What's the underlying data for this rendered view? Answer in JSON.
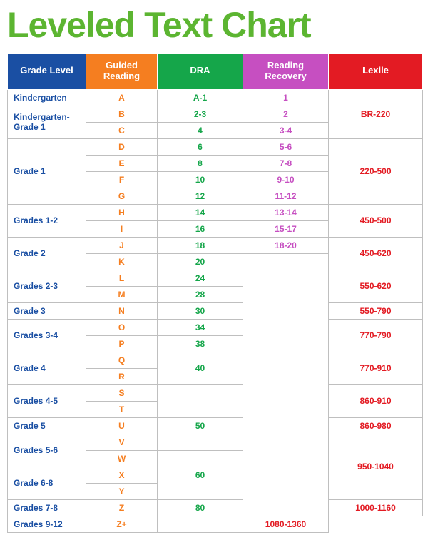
{
  "title": "Leveled Text Chart",
  "title_color": "#5cb531",
  "columns": [
    {
      "key": "grade",
      "label": "Grade Level",
      "bg": "#1a4fa3",
      "text_color": "#1a4fa3"
    },
    {
      "key": "guided",
      "label": "Guided Reading",
      "bg": "#f57e20",
      "text_color": "#f57e20"
    },
    {
      "key": "dra",
      "label": "DRA",
      "bg": "#15a64a",
      "text_color": "#15a64a"
    },
    {
      "key": "rr",
      "label": "Reading Recovery",
      "bg": "#c64fc1",
      "text_color": "#c64fc1"
    },
    {
      "key": "lexile",
      "label": "Lexile",
      "bg": "#e31b23",
      "text_color": "#e31b23"
    }
  ],
  "rows": [
    {
      "grade": {
        "v": "Kindergarten",
        "span": 1
      },
      "guided": {
        "v": "A",
        "span": 1
      },
      "dra": {
        "v": "A-1",
        "span": 1
      },
      "rr": {
        "v": "1",
        "span": 1
      },
      "lexile": {
        "v": "BR-220",
        "span": 3
      }
    },
    {
      "grade": {
        "v": "Kindergarten- Grade 1",
        "span": 2
      },
      "guided": {
        "v": "B",
        "span": 1
      },
      "dra": {
        "v": "2-3",
        "span": 1
      },
      "rr": {
        "v": "2",
        "span": 1
      },
      "lexile": null
    },
    {
      "grade": null,
      "guided": {
        "v": "C",
        "span": 1
      },
      "dra": {
        "v": "4",
        "span": 1
      },
      "rr": {
        "v": "3-4",
        "span": 1
      },
      "lexile": null
    },
    {
      "grade": {
        "v": "Grade 1",
        "span": 4
      },
      "guided": {
        "v": "D",
        "span": 1
      },
      "dra": {
        "v": "6",
        "span": 1
      },
      "rr": {
        "v": "5-6",
        "span": 1
      },
      "lexile": {
        "v": "220-500",
        "span": 4
      }
    },
    {
      "grade": null,
      "guided": {
        "v": "E",
        "span": 1
      },
      "dra": {
        "v": "8",
        "span": 1
      },
      "rr": {
        "v": "7-8",
        "span": 1
      },
      "lexile": null
    },
    {
      "grade": null,
      "guided": {
        "v": "F",
        "span": 1
      },
      "dra": {
        "v": "10",
        "span": 1
      },
      "rr": {
        "v": "9-10",
        "span": 1
      },
      "lexile": null
    },
    {
      "grade": null,
      "guided": {
        "v": "G",
        "span": 1
      },
      "dra": {
        "v": "12",
        "span": 1
      },
      "rr": {
        "v": "11-12",
        "span": 1
      },
      "lexile": null
    },
    {
      "grade": {
        "v": "Grades 1-2",
        "span": 2
      },
      "guided": {
        "v": "H",
        "span": 1
      },
      "dra": {
        "v": "14",
        "span": 1
      },
      "rr": {
        "v": "13-14",
        "span": 1
      },
      "lexile": {
        "v": "450-500",
        "span": 2
      }
    },
    {
      "grade": null,
      "guided": {
        "v": "I",
        "span": 1
      },
      "dra": {
        "v": "16",
        "span": 1
      },
      "rr": {
        "v": "15-17",
        "span": 1
      },
      "lexile": null
    },
    {
      "grade": {
        "v": "Grade 2",
        "span": 2
      },
      "guided": {
        "v": "J",
        "span": 1
      },
      "dra": {
        "v": "18",
        "span": 1
      },
      "rr": {
        "v": "18-20",
        "span": 1
      },
      "lexile": {
        "v": "450-620",
        "span": 2
      }
    },
    {
      "grade": null,
      "guided": {
        "v": "K",
        "span": 1
      },
      "dra": {
        "v": "20",
        "span": 1
      },
      "rr": {
        "v": "",
        "span": 16
      },
      "lexile": null
    },
    {
      "grade": {
        "v": "Grades 2-3",
        "span": 2
      },
      "guided": {
        "v": "L",
        "span": 1
      },
      "dra": {
        "v": "24",
        "span": 1
      },
      "rr": null,
      "lexile": {
        "v": "550-620",
        "span": 2
      }
    },
    {
      "grade": null,
      "guided": {
        "v": "M",
        "span": 1
      },
      "dra": {
        "v": "28",
        "span": 1
      },
      "rr": null,
      "lexile": null
    },
    {
      "grade": {
        "v": "Grade 3",
        "span": 1
      },
      "guided": {
        "v": "N",
        "span": 1
      },
      "dra": {
        "v": "30",
        "span": 1
      },
      "rr": null,
      "lexile": {
        "v": "550-790",
        "span": 1
      }
    },
    {
      "grade": {
        "v": "Grades 3-4",
        "span": 2
      },
      "guided": {
        "v": "O",
        "span": 1
      },
      "dra": {
        "v": "34",
        "span": 1
      },
      "rr": null,
      "lexile": {
        "v": "770-790",
        "span": 2
      }
    },
    {
      "grade": null,
      "guided": {
        "v": "P",
        "span": 1
      },
      "dra": {
        "v": "38",
        "span": 1
      },
      "rr": null,
      "lexile": null
    },
    {
      "grade": {
        "v": "Grade 4",
        "span": 2
      },
      "guided": {
        "v": "Q",
        "span": 1
      },
      "dra": {
        "v": "40",
        "span": 2
      },
      "rr": null,
      "lexile": {
        "v": "770-910",
        "span": 2
      }
    },
    {
      "grade": null,
      "guided": {
        "v": "R",
        "span": 1
      },
      "dra": null,
      "rr": null,
      "lexile": null
    },
    {
      "grade": {
        "v": "Grades 4-5",
        "span": 2
      },
      "guided": {
        "v": "S",
        "span": 1
      },
      "dra": {
        "v": "",
        "span": 2
      },
      "rr": null,
      "lexile": {
        "v": "860-910",
        "span": 2
      }
    },
    {
      "grade": null,
      "guided": {
        "v": "T",
        "span": 1
      },
      "dra": null,
      "rr": null,
      "lexile": null
    },
    {
      "grade": {
        "v": "Grade 5",
        "span": 1
      },
      "guided": {
        "v": "U",
        "span": 1
      },
      "dra": {
        "v": "50",
        "span": 1
      },
      "rr": null,
      "lexile": {
        "v": "860-980",
        "span": 1
      }
    },
    {
      "grade": {
        "v": "Grades 5-6",
        "span": 2
      },
      "guided": {
        "v": "V",
        "span": 1
      },
      "dra": {
        "v": "",
        "span": 1
      },
      "rr": null,
      "lexile": {
        "v": "950-1040",
        "span": 4
      }
    },
    {
      "grade": null,
      "guided": {
        "v": "W",
        "span": 1
      },
      "dra": {
        "v": "60",
        "span": 3
      },
      "rr": null,
      "lexile": null
    },
    {
      "grade": {
        "v": "Grade 6-8",
        "span": 2
      },
      "guided": {
        "v": "X",
        "span": 1
      },
      "dra": null,
      "rr": null,
      "lexile": null
    },
    {
      "grade": null,
      "guided": {
        "v": "Y",
        "span": 1
      },
      "dra": null,
      "rr": null,
      "lexile": null
    },
    {
      "grade": {
        "v": "Grades 7-8",
        "span": 1
      },
      "guided": {
        "v": "Z",
        "span": 1
      },
      "dra": {
        "v": "80",
        "span": 1
      },
      "rr": null,
      "lexile": {
        "v": "1000-1160",
        "span": 1
      }
    },
    {
      "grade": {
        "v": "Grades 9-12",
        "span": 1
      },
      "guided": {
        "v": "Z+",
        "span": 1
      },
      "dra": {
        "v": "",
        "span": 1
      },
      "rr": null,
      "lexile": {
        "v": "1080-1360",
        "span": 1
      }
    }
  ]
}
